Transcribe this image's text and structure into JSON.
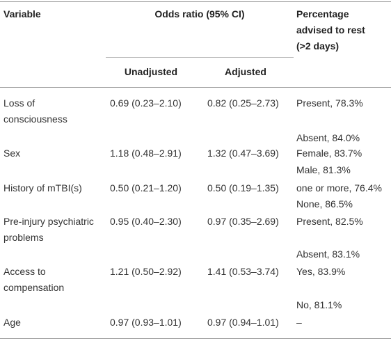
{
  "header": {
    "variable": "Variable",
    "odds_ratio": "Odds ratio (95% CI)",
    "percentage": [
      "Percentage",
      "advised to rest",
      "(>2 days)"
    ],
    "unadjusted": "Unadjusted",
    "adjusted": "Adjusted"
  },
  "table": {
    "rows": [
      {
        "variable": [
          "Loss of",
          "consciousness"
        ],
        "unadjusted": "0.69 (0.23–2.10)",
        "adjusted": "0.82 (0.25–2.73)",
        "percentages": [
          "Present, 78.3%",
          "Absent, 84.0%"
        ]
      },
      {
        "variable": [
          "Sex"
        ],
        "unadjusted": "1.18 (0.48–2.91)",
        "adjusted": "1.32 (0.47–3.69)",
        "percentages": [
          "Female, 83.7%",
          "Male, 81.3%"
        ]
      },
      {
        "variable": [
          "History of mTBI(s)"
        ],
        "unadjusted": "0.50 (0.21–1.20)",
        "adjusted": "0.50 (0.19–1.35)",
        "percentages": [
          "one or more, 76.4%",
          "None, 86.5%"
        ]
      },
      {
        "variable": [
          "Pre-injury psychiatric",
          "problems"
        ],
        "unadjusted": "0.95 (0.40–2.30)",
        "adjusted": "0.97 (0.35–2.69)",
        "percentages": [
          "Present, 82.5%",
          "Absent, 83.1%"
        ]
      },
      {
        "variable": [
          "Access to",
          "compensation"
        ],
        "unadjusted": "1.21 (0.50–2.92)",
        "adjusted": "1.41 (0.53–3.74)",
        "percentages": [
          "Yes, 83.9%",
          "No, 81.1%"
        ]
      },
      {
        "variable": [
          "Age"
        ],
        "unadjusted": "0.97 (0.93–1.01)",
        "adjusted": "0.97 (0.94–1.01)",
        "percentages": [
          "–"
        ]
      }
    ]
  }
}
